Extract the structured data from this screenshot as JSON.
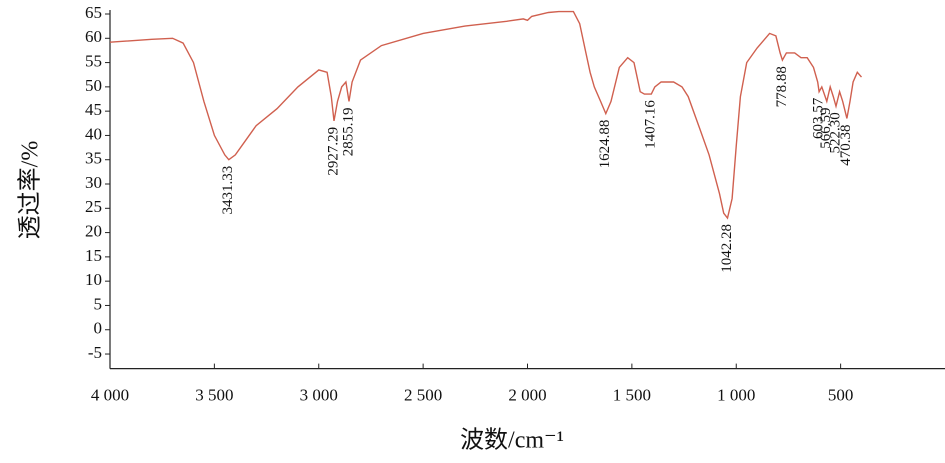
{
  "chart_data": {
    "type": "line",
    "xlabel": "波数/cm⁻¹",
    "ylabel": "透过率/%",
    "xlim": [
      4000,
      0
    ],
    "ylim": [
      -8,
      65
    ],
    "xticks": [
      {
        "value": 4000,
        "label": "4 000"
      },
      {
        "value": 3500,
        "label": "3 500"
      },
      {
        "value": 3000,
        "label": "3 000"
      },
      {
        "value": 2500,
        "label": "2 500"
      },
      {
        "value": 2000,
        "label": "2 000"
      },
      {
        "value": 1500,
        "label": "1 500"
      },
      {
        "value": 1000,
        "label": "1 000"
      },
      500
    ],
    "yticks": [
      -5,
      0,
      5,
      10,
      15,
      20,
      25,
      30,
      35,
      40,
      45,
      50,
      55,
      60,
      65
    ],
    "color": "#d0604f",
    "x": [
      4000,
      3800,
      3700,
      3650,
      3600,
      3550,
      3500,
      3450,
      3431,
      3400,
      3350,
      3300,
      3200,
      3100,
      3000,
      2960,
      2940,
      2927,
      2910,
      2890,
      2870,
      2855,
      2840,
      2800,
      2700,
      2500,
      2300,
      2100,
      2020,
      2000,
      1980,
      1900,
      1850,
      1780,
      1750,
      1720,
      1700,
      1680,
      1650,
      1625,
      1600,
      1560,
      1520,
      1490,
      1460,
      1440,
      1407,
      1390,
      1360,
      1300,
      1260,
      1230,
      1180,
      1130,
      1080,
      1060,
      1042,
      1020,
      1000,
      980,
      950,
      900,
      870,
      840,
      810,
      790,
      779,
      760,
      720,
      690,
      660,
      630,
      610,
      603,
      590,
      566,
      550,
      535,
      522,
      505,
      490,
      470,
      455,
      440,
      420,
      400
    ],
    "values": [
      59.2,
      59.8,
      60,
      59,
      55,
      47,
      40,
      36,
      35,
      36,
      39,
      42,
      45.5,
      50,
      53.5,
      53,
      48,
      43,
      47,
      50,
      51,
      47,
      51,
      55.5,
      58.5,
      61,
      62.5,
      63.5,
      64,
      63.7,
      64.5,
      65.3,
      65.5,
      65.5,
      63,
      57,
      53,
      50,
      47,
      44.5,
      47,
      54,
      56,
      55,
      49,
      48.5,
      48.5,
      50,
      51,
      51,
      50,
      48,
      42,
      36,
      28,
      24,
      23,
      27,
      38,
      48,
      55,
      58,
      59.5,
      61,
      60.5,
      57,
      55.5,
      57,
      57,
      56,
      56,
      54,
      51,
      49,
      50,
      47,
      50,
      48,
      46,
      49,
      47,
      43.5,
      47,
      51,
      53,
      52
    ],
    "peaks": [
      {
        "label": "3431.33",
        "x": 3431.33,
        "y": 35
      },
      {
        "label": "2927.29",
        "x": 2927.29,
        "y": 43
      },
      {
        "label": "2855.19",
        "x": 2855.19,
        "y": 47
      },
      {
        "label": "1624.88",
        "x": 1624.88,
        "y": 44.5
      },
      {
        "label": "1407.16",
        "x": 1407.16,
        "y": 48.5
      },
      {
        "label": "1042.28",
        "x": 1042.28,
        "y": 23
      },
      {
        "label": "778.88",
        "x": 778.88,
        "y": 55.5
      },
      {
        "label": "603.57",
        "x": 603.57,
        "y": 49
      },
      {
        "label": "566.59",
        "x": 566.59,
        "y": 47
      },
      {
        "label": "522.30",
        "x": 522.3,
        "y": 46
      },
      {
        "label": "470.38",
        "x": 470.38,
        "y": 43.5
      }
    ]
  }
}
